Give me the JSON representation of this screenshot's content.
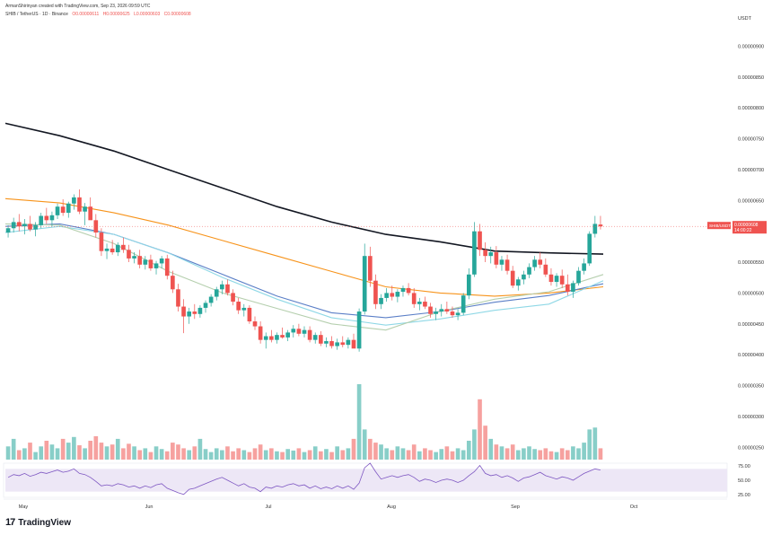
{
  "header": {
    "author_line": "ArmanShirinyan created with TradingView.com, Sep 23, 2026 09:59 UTC",
    "symbol": "SHIB / TetherUS · 1D · Binance",
    "o": "O0.00000611",
    "h": "H0.00000625",
    "l": "L0.00000603",
    "c": "C0.00000608"
  },
  "price_axis": {
    "currency": "USDT",
    "ticks": [
      "0.00000900",
      "0.00000850",
      "0.00000800",
      "0.00000750",
      "0.00000700",
      "0.00000650",
      "0.00000600",
      "0.00000550",
      "0.00000500",
      "0.00000450",
      "0.00000400",
      "0.00000350",
      "0.00000300",
      "0.00000250"
    ],
    "last_label": "SHIB/USDT",
    "last_price": "0.00000608",
    "countdown": "14:00:22"
  },
  "rsi_axis": {
    "ticks": [
      "75.00",
      "50.00",
      "25.00"
    ]
  },
  "time_axis": {
    "labels": [
      "May",
      "Jun",
      "Jul",
      "Aug",
      "Sep",
      "Oct"
    ]
  },
  "branding": {
    "name": "TradingView"
  },
  "colors": {
    "up": "#26a69a",
    "down": "#ef5350",
    "ma200": "#131722",
    "ma_orange": "#f7931a",
    "ma_blue": "#5b7fc7",
    "ma_cyan": "#8fd8e6",
    "ma_green": "#b5cfae",
    "rsi": "#7e57c2"
  },
  "chart_data": [
    {
      "type": "candlestick",
      "title": "SHIB / TetherUS · 1D · Binance",
      "x_labels": [
        "May",
        "Jun",
        "Jul",
        "Aug",
        "Sep",
        "Oct"
      ],
      "ylim": [
        2.3e-06,
        9.4e-06
      ],
      "ohlc": [
        [
          5.98e-06,
          6.1e-06,
          5.9e-06,
          6.05e-06
        ],
        [
          6.05e-06,
          6.22e-06,
          5.98e-06,
          6.15e-06
        ],
        [
          6.15e-06,
          6.28e-06,
          6e-06,
          6.08e-06
        ],
        [
          6.08e-06,
          6.2e-06,
          5.95e-06,
          6.12e-06
        ],
        [
          6.12e-06,
          6.25e-06,
          6e-06,
          6.03e-06
        ],
        [
          6.03e-06,
          6.15e-06,
          5.92e-06,
          6.1e-06
        ],
        [
          6.1e-06,
          6.3e-06,
          6.05e-06,
          6.25e-06
        ],
        [
          6.25e-06,
          6.38e-06,
          6.12e-06,
          6.18e-06
        ],
        [
          6.18e-06,
          6.32e-06,
          6.08e-06,
          6.26e-06
        ],
        [
          6.26e-06,
          6.45e-06,
          6.2e-06,
          6.4e-06
        ],
        [
          6.4e-06,
          6.52e-06,
          6.25e-06,
          6.3e-06
        ],
        [
          6.3e-06,
          6.48e-06,
          6.22e-06,
          6.45e-06
        ],
        [
          6.45e-06,
          6.6e-06,
          6.35e-06,
          6.55e-06
        ],
        [
          6.55e-06,
          6.68e-06,
          6.28e-06,
          6.32e-06
        ],
        [
          6.32e-06,
          6.46e-06,
          6.1e-06,
          6.4e-06
        ],
        [
          6.4e-06,
          6.55e-06,
          6.2e-06,
          6.18e-06
        ],
        [
          6.18e-06,
          6.28e-06,
          5.9e-06,
          5.98e-06
        ],
        [
          5.98e-06,
          6.05e-06,
          5.6e-06,
          5.68e-06
        ],
        [
          5.68e-06,
          5.8e-06,
          5.55e-06,
          5.72e-06
        ],
        [
          5.72e-06,
          5.86e-06,
          5.62e-06,
          5.66e-06
        ],
        [
          5.66e-06,
          5.82e-06,
          5.6e-06,
          5.78e-06
        ],
        [
          5.78e-06,
          5.9e-06,
          5.65e-06,
          5.7e-06
        ],
        [
          5.7e-06,
          5.78e-06,
          5.5e-06,
          5.56e-06
        ],
        [
          5.56e-06,
          5.66e-06,
          5.48e-06,
          5.6e-06
        ],
        [
          5.6e-06,
          5.7e-06,
          5.4e-06,
          5.46e-06
        ],
        [
          5.46e-06,
          5.6e-06,
          5.38e-06,
          5.54e-06
        ],
        [
          5.54e-06,
          5.62e-06,
          5.36e-06,
          5.4e-06
        ],
        [
          5.4e-06,
          5.52e-06,
          5.3e-06,
          5.48e-06
        ],
        [
          5.48e-06,
          5.6e-06,
          5.4e-06,
          5.56e-06
        ],
        [
          5.56e-06,
          5.62e-06,
          5.22e-06,
          5.28e-06
        ],
        [
          5.28e-06,
          5.36e-06,
          5e-06,
          5.06e-06
        ],
        [
          5.06e-06,
          5.15e-06,
          4.7e-06,
          4.78e-06
        ],
        [
          4.78e-06,
          4.9e-06,
          4.35e-06,
          4.62e-06
        ],
        [
          4.62e-06,
          4.76e-06,
          4.5e-06,
          4.7e-06
        ],
        [
          4.7e-06,
          4.82e-06,
          4.58e-06,
          4.66e-06
        ],
        [
          4.66e-06,
          4.8e-06,
          4.6e-06,
          4.76e-06
        ],
        [
          4.76e-06,
          4.88e-06,
          4.68e-06,
          4.84e-06
        ],
        [
          4.84e-06,
          4.98e-06,
          4.78e-06,
          4.94e-06
        ],
        [
          4.94e-06,
          5.1e-06,
          4.88e-06,
          5.06e-06
        ],
        [
          5.06e-06,
          5.2e-06,
          4.98e-06,
          5.14e-06
        ],
        [
          5.14e-06,
          5.22e-06,
          4.96e-06,
          5e-06
        ],
        [
          5e-06,
          5.06e-06,
          4.8e-06,
          4.86e-06
        ],
        [
          4.86e-06,
          4.92e-06,
          4.66e-06,
          4.72e-06
        ],
        [
          4.72e-06,
          4.82e-06,
          4.62e-06,
          4.76e-06
        ],
        [
          4.76e-06,
          4.8e-06,
          4.5e-06,
          4.54e-06
        ],
        [
          4.54e-06,
          4.62e-06,
          4.4e-06,
          4.46e-06
        ],
        [
          4.46e-06,
          4.54e-06,
          4.18e-06,
          4.24e-06
        ],
        [
          4.24e-06,
          4.36e-06,
          4.1e-06,
          4.3e-06
        ],
        [
          4.3e-06,
          4.4e-06,
          4.2e-06,
          4.24e-06
        ],
        [
          4.24e-06,
          4.36e-06,
          4.18e-06,
          4.32e-06
        ],
        [
          4.32e-06,
          4.44e-06,
          4.26e-06,
          4.28e-06
        ],
        [
          4.28e-06,
          4.4e-06,
          4.22e-06,
          4.36e-06
        ],
        [
          4.36e-06,
          4.48e-06,
          4.28e-06,
          4.42e-06
        ],
        [
          4.42e-06,
          4.5e-06,
          4.3e-06,
          4.34e-06
        ],
        [
          4.34e-06,
          4.46e-06,
          4.28e-06,
          4.4e-06
        ],
        [
          4.4e-06,
          4.46e-06,
          4.2e-06,
          4.24e-06
        ],
        [
          4.24e-06,
          4.36e-06,
          4.18e-06,
          4.32e-06
        ],
        [
          4.32e-06,
          4.38e-06,
          4.14e-06,
          4.18e-06
        ],
        [
          4.18e-06,
          4.28e-06,
          4.12e-06,
          4.22e-06
        ],
        [
          4.22e-06,
          4.3e-06,
          4.1e-06,
          4.14e-06
        ],
        [
          4.14e-06,
          4.26e-06,
          4.08e-06,
          4.2e-06
        ],
        [
          4.2e-06,
          4.3e-06,
          4.12e-06,
          4.16e-06
        ],
        [
          4.16e-06,
          4.28e-06,
          4.1e-06,
          4.24e-06
        ],
        [
          4.24e-06,
          4.34e-06,
          4.12e-06,
          4.1e-06
        ],
        [
          4.1e-06,
          4.75e-06,
          4.05e-06,
          4.7e-06
        ],
        [
          4.7e-06,
          5.8e-06,
          4.65e-06,
          5.6e-06
        ],
        [
          5.6e-06,
          5.75e-06,
          5.1e-06,
          5.2e-06
        ],
        [
          5.2e-06,
          5.3e-06,
          4.74e-06,
          4.82e-06
        ],
        [
          4.82e-06,
          4.98e-06,
          4.74e-06,
          4.92e-06
        ],
        [
          4.92e-06,
          5.08e-06,
          4.86e-06,
          5e-06
        ],
        [
          5e-06,
          5.12e-06,
          4.88e-06,
          4.94e-06
        ],
        [
          4.94e-06,
          5.06e-06,
          4.85e-06,
          5.02e-06
        ],
        [
          5.02e-06,
          5.12e-06,
          4.94e-06,
          5.08e-06
        ],
        [
          5.08e-06,
          5.16e-06,
          4.96e-06,
          5e-06
        ],
        [
          5e-06,
          5.08e-06,
          4.76e-06,
          4.82e-06
        ],
        [
          4.82e-06,
          4.92e-06,
          4.72e-06,
          4.86e-06
        ],
        [
          4.86e-06,
          4.94e-06,
          4.74e-06,
          4.78e-06
        ],
        [
          4.78e-06,
          4.84e-06,
          4.6e-06,
          4.66e-06
        ],
        [
          4.66e-06,
          4.76e-06,
          4.56e-06,
          4.7e-06
        ],
        [
          4.7e-06,
          4.82e-06,
          4.62e-06,
          4.74e-06
        ],
        [
          4.74e-06,
          4.86e-06,
          4.66e-06,
          4.7e-06
        ],
        [
          4.7e-06,
          4.78e-06,
          4.6e-06,
          4.64e-06
        ],
        [
          4.64e-06,
          4.74e-06,
          4.56e-06,
          4.68e-06
        ],
        [
          4.68e-06,
          5e-06,
          4.64e-06,
          4.96e-06
        ],
        [
          4.96e-06,
          5.4e-06,
          4.9e-06,
          5.3e-06
        ],
        [
          5.3e-06,
          6.15e-06,
          5.26e-06,
          6e-06
        ],
        [
          6e-06,
          6.12e-06,
          5.6e-06,
          5.7e-06
        ],
        [
          5.7e-06,
          5.82e-06,
          5.5e-06,
          5.6e-06
        ],
        [
          5.6e-06,
          5.75e-06,
          5.48e-06,
          5.66e-06
        ],
        [
          5.66e-06,
          5.76e-06,
          5.4e-06,
          5.46e-06
        ],
        [
          5.46e-06,
          5.6e-06,
          5.36e-06,
          5.54e-06
        ],
        [
          5.54e-06,
          5.62e-06,
          5.3e-06,
          5.36e-06
        ],
        [
          5.36e-06,
          5.44e-06,
          5.08e-06,
          5.12e-06
        ],
        [
          5.12e-06,
          5.26e-06,
          5.04e-06,
          5.22e-06
        ],
        [
          5.22e-06,
          5.36e-06,
          5.14e-06,
          5.3e-06
        ],
        [
          5.3e-06,
          5.48e-06,
          5.24e-06,
          5.42e-06
        ],
        [
          5.42e-06,
          5.6e-06,
          5.36e-06,
          5.54e-06
        ],
        [
          5.54e-06,
          5.66e-06,
          5.4e-06,
          5.46e-06
        ],
        [
          5.46e-06,
          5.56e-06,
          5.26e-06,
          5.3e-06
        ],
        [
          5.3e-06,
          5.4e-06,
          5.12e-06,
          5.18e-06
        ],
        [
          5.18e-06,
          5.32e-06,
          5.1e-06,
          5.28e-06
        ],
        [
          5.28e-06,
          5.38e-06,
          5.08e-06,
          5.14e-06
        ],
        [
          5.14e-06,
          5.3e-06,
          4.96e-06,
          5.02e-06
        ],
        [
          5.02e-06,
          5.2e-06,
          4.92e-06,
          5.16e-06
        ],
        [
          5.16e-06,
          5.42e-06,
          5.12e-06,
          5.36e-06
        ],
        [
          5.36e-06,
          5.56e-06,
          5.3e-06,
          5.48e-06
        ],
        [
          5.48e-06,
          6e-06,
          5.44e-06,
          5.96e-06
        ],
        [
          5.96e-06,
          6.25e-06,
          5.9e-06,
          6.12e-06
        ],
        [
          6.11e-06,
          6.25e-06,
          6.03e-06,
          6.08e-06
        ]
      ],
      "volume": [
        0.35,
        0.55,
        0.25,
        0.3,
        0.45,
        0.2,
        0.35,
        0.5,
        0.4,
        0.3,
        0.55,
        0.45,
        0.6,
        0.38,
        0.3,
        0.5,
        0.62,
        0.45,
        0.35,
        0.4,
        0.55,
        0.3,
        0.42,
        0.35,
        0.25,
        0.3,
        0.2,
        0.35,
        0.28,
        0.22,
        0.45,
        0.4,
        0.3,
        0.25,
        0.35,
        0.55,
        0.28,
        0.2,
        0.3,
        0.25,
        0.35,
        0.22,
        0.3,
        0.25,
        0.2,
        0.3,
        0.4,
        0.25,
        0.3,
        0.22,
        0.2,
        0.28,
        0.24,
        0.3,
        0.2,
        0.25,
        0.35,
        0.22,
        0.28,
        0.2,
        0.35,
        0.25,
        0.3,
        0.55,
        2.0,
        0.8,
        0.55,
        0.45,
        0.4,
        0.3,
        0.25,
        0.35,
        0.3,
        0.25,
        0.4,
        0.22,
        0.3,
        0.25,
        0.2,
        0.28,
        0.35,
        0.22,
        0.3,
        0.25,
        0.5,
        0.8,
        1.6,
        0.9,
        0.55,
        0.4,
        0.35,
        0.3,
        0.4,
        0.25,
        0.3,
        0.35,
        0.28,
        0.25,
        0.3,
        0.22,
        0.2,
        0.3,
        0.25,
        0.35,
        0.3,
        0.45,
        0.8,
        0.85,
        0.3
      ],
      "moving_averages": [
        {
          "color": "#131722",
          "points": [
            7.75e-06,
            7.55e-06,
            7.3e-06,
            7e-06,
            6.7e-06,
            6.4e-06,
            6.15e-06,
            5.95e-06,
            5.83e-06,
            5.68e-06,
            5.65e-06,
            5.63e-06
          ]
        },
        {
          "color": "#f7931a",
          "points": [
            6.53e-06,
            6.46e-06,
            6.3e-06,
            6.1e-06,
            5.85e-06,
            5.6e-06,
            5.35e-06,
            5.1e-06,
            5e-06,
            4.95e-06,
            5e-06,
            5.1e-06
          ]
        },
        {
          "color": "#5b7fc7",
          "points": [
            6.08e-06,
            6.12e-06,
            5.95e-06,
            5.65e-06,
            5.3e-06,
            4.95e-06,
            4.68e-06,
            4.6e-06,
            4.7e-06,
            4.85e-06,
            4.96e-06,
            5.15e-06
          ]
        },
        {
          "color": "#8fd8e6",
          "points": [
            5.98e-06,
            6.08e-06,
            5.95e-06,
            5.65e-06,
            5.25e-06,
            4.9e-06,
            4.6e-06,
            4.48e-06,
            4.58e-06,
            4.72e-06,
            4.82e-06,
            5.2e-06
          ]
        },
        {
          "color": "#b5cfae",
          "points": [
            6.12e-06,
            6.1e-06,
            5.8e-06,
            5.35e-06,
            5e-06,
            4.75e-06,
            4.5e-06,
            4.4e-06,
            4.7e-06,
            4.9e-06,
            5.02e-06,
            5.3e-06
          ]
        }
      ]
    },
    {
      "type": "line",
      "title": "",
      "ylim": [
        20,
        80
      ],
      "ticks": [
        75,
        50,
        25
      ],
      "band": [
        30,
        70
      ],
      "values": [
        55,
        60,
        58,
        62,
        57,
        60,
        64,
        62,
        65,
        68,
        64,
        66,
        70,
        62,
        60,
        55,
        48,
        40,
        42,
        40,
        44,
        42,
        38,
        40,
        36,
        40,
        37,
        42,
        44,
        36,
        32,
        28,
        25,
        34,
        36,
        40,
        44,
        48,
        52,
        55,
        50,
        45,
        40,
        44,
        38,
        36,
        30,
        38,
        36,
        40,
        38,
        42,
        44,
        40,
        42,
        36,
        40,
        35,
        38,
        35,
        40,
        36,
        40,
        34,
        45,
        72,
        80,
        65,
        52,
        55,
        58,
        55,
        58,
        60,
        55,
        48,
        52,
        50,
        46,
        50,
        52,
        50,
        46,
        50,
        58,
        65,
        76,
        62,
        58,
        60,
        55,
        58,
        54,
        48,
        54,
        56,
        60,
        64,
        58,
        55,
        52,
        56,
        54,
        50,
        56,
        62,
        66,
        70,
        68
      ]
    }
  ]
}
